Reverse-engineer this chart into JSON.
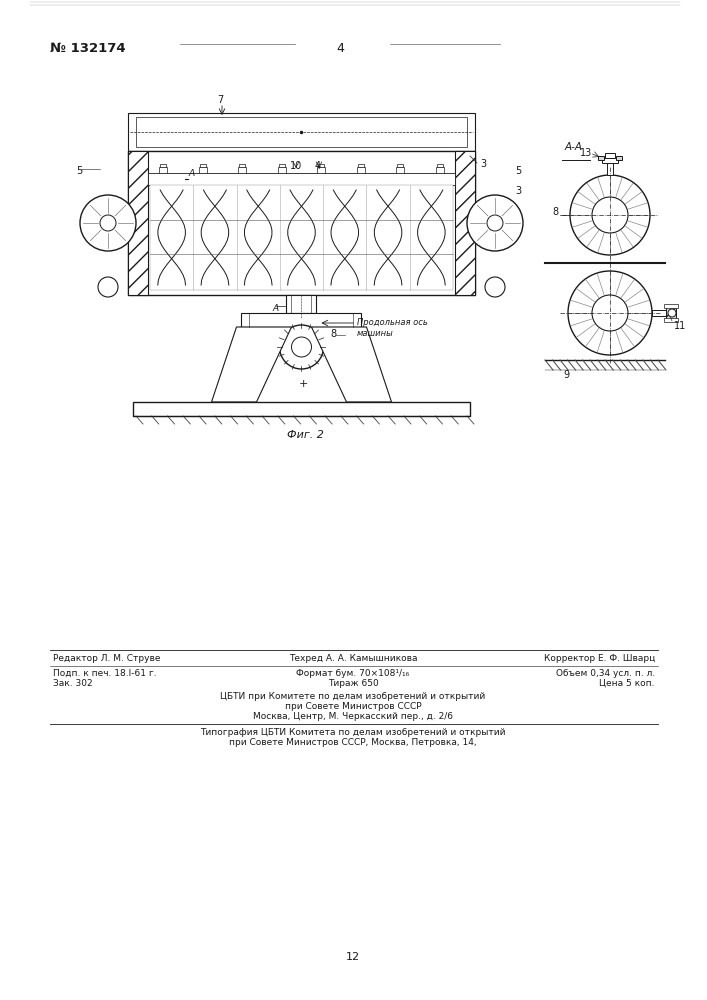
{
  "bg_color": "#ffffff",
  "page_number": "12",
  "patent_number": "№ 132174",
  "page_label": "4",
  "fig2_label": "Фиг. 2",
  "section_label": "A-A",
  "footer": {
    "editor": "Редактор Л. М. Струве",
    "techred": "Техред А. А. Камышникова",
    "corrector": "Корректор Е. Ф. Шварц",
    "podp": "Подп. к печ. 18.I-61 г.",
    "zak": "Зак. 302",
    "format": "Формат бум. 70×108¹/₁₆",
    "tirazh": "Тираж 650",
    "obem": "Объем 0,34 усл. п. л.",
    "cena": "Цена 5 коп.",
    "cbti1": "ЦБТИ при Комитете по делам изобретений и открытий",
    "cbti2": "при Совете Министров СССР",
    "cbti3": "Москва, Центр, М. Черкасский пер., д. 2/6",
    "tipogr1": "Типография ЦБТИ Комитета по делам изобретений и открытий",
    "tipogr2": "при Совете Министров СССР, Москва, Петровка, 14,"
  }
}
